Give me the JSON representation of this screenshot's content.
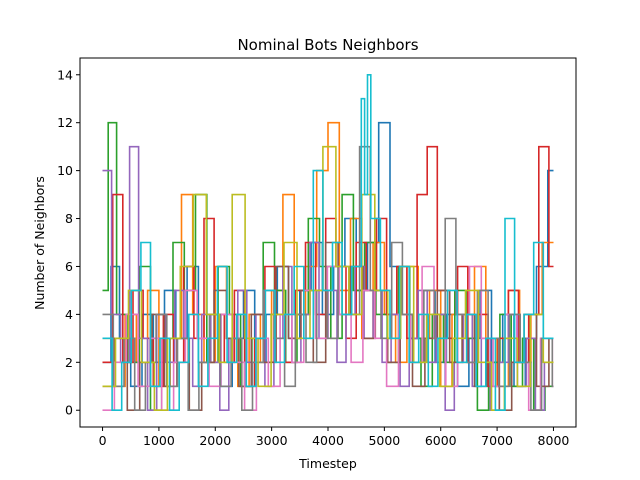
{
  "chart_data": {
    "type": "line",
    "title": "Nominal Bots Neighbors",
    "xlabel": "Timestep",
    "ylabel": "Number of Neighbors",
    "xlim": [
      -400,
      8400
    ],
    "ylim": [
      -0.7,
      14.7
    ],
    "xticks": [
      0,
      1000,
      2000,
      3000,
      4000,
      5000,
      6000,
      7000,
      8000
    ],
    "xtick_labels": [
      "0",
      "1000",
      "2000",
      "3000",
      "4000",
      "5000",
      "6000",
      "7000",
      "8000"
    ],
    "yticks": [
      0,
      2,
      4,
      6,
      8,
      10,
      12,
      14
    ],
    "ytick_labels": [
      "0",
      "2",
      "4",
      "6",
      "8",
      "10",
      "12",
      "14"
    ],
    "grid": false,
    "legend": "none",
    "step": true,
    "colors": [
      "#1f77b4",
      "#ff7f0e",
      "#2ca02c",
      "#d62728",
      "#9467bd",
      "#8c564b",
      "#e377c2",
      "#7f7f7f",
      "#bcbd22",
      "#17becf"
    ],
    "series": [
      {
        "color": "#1f77b4",
        "x": [
          0,
          150,
          300,
          500,
          700,
          900,
          1100,
          1300,
          1500,
          1700,
          1900,
          2100,
          2300,
          2500,
          2700,
          2900,
          3100,
          3300,
          3500,
          3700,
          3900,
          4100,
          4300,
          4500,
          4700,
          4900,
          5100,
          5300,
          5500,
          5700,
          5900,
          6100,
          6300,
          6500,
          6700,
          6900,
          7100,
          7300,
          7500,
          7700,
          7900,
          8000
        ],
        "y": [
          2,
          6,
          3,
          1,
          4,
          2,
          5,
          3,
          6,
          2,
          4,
          1,
          3,
          5,
          2,
          4,
          6,
          3,
          5,
          7,
          4,
          6,
          8,
          5,
          7,
          12,
          6,
          4,
          3,
          5,
          2,
          4,
          1,
          3,
          5,
          2,
          4,
          1,
          3,
          6,
          10,
          10
        ]
      },
      {
        "color": "#ff7f0e",
        "x": [
          0,
          200,
          400,
          600,
          800,
          1000,
          1200,
          1400,
          1600,
          1800,
          2000,
          2200,
          2400,
          2600,
          2800,
          3000,
          3200,
          3400,
          3600,
          3800,
          4000,
          4200,
          4400,
          4600,
          4800,
          5000,
          5200,
          5400,
          5600,
          5800,
          6000,
          6200,
          6400,
          6600,
          6800,
          7000,
          7200,
          7400,
          7600,
          7800,
          8000
        ],
        "y": [
          3,
          1,
          4,
          2,
          5,
          1,
          3,
          9,
          4,
          2,
          6,
          3,
          1,
          4,
          2,
          5,
          9,
          4,
          6,
          10,
          12,
          5,
          8,
          3,
          7,
          4,
          2,
          6,
          3,
          5,
          1,
          4,
          2,
          6,
          3,
          1,
          5,
          2,
          4,
          7,
          7
        ]
      },
      {
        "color": "#2ca02c",
        "x": [
          0,
          100,
          250,
          450,
          650,
          850,
          1050,
          1250,
          1450,
          1650,
          1850,
          2050,
          2250,
          2450,
          2650,
          2850,
          3050,
          3250,
          3450,
          3650,
          3850,
          4050,
          4250,
          4450,
          4650,
          4850,
          5050,
          5250,
          5450,
          5650,
          5850,
          6050,
          6250,
          6450,
          6650,
          6850,
          7050,
          7250,
          7450,
          7650,
          7850,
          8000
        ],
        "y": [
          5,
          12,
          4,
          2,
          6,
          0,
          3,
          7,
          5,
          9,
          2,
          6,
          4,
          1,
          3,
          7,
          5,
          2,
          4,
          8,
          6,
          3,
          9,
          5,
          7,
          4,
          2,
          6,
          3,
          1,
          4,
          2,
          5,
          3,
          0,
          2,
          4,
          1,
          3,
          0,
          1,
          1
        ]
      },
      {
        "color": "#d62728",
        "x": [
          0,
          180,
          360,
          540,
          720,
          900,
          1080,
          1260,
          1440,
          1620,
          1800,
          1980,
          2160,
          2340,
          2520,
          2700,
          2880,
          3060,
          3240,
          3420,
          3600,
          3780,
          3960,
          4140,
          4320,
          4500,
          4680,
          4860,
          5040,
          5220,
          5400,
          5580,
          5760,
          5940,
          6120,
          6300,
          6480,
          6660,
          6840,
          7020,
          7200,
          7380,
          7560,
          7740,
          7920,
          8000
        ],
        "y": [
          2,
          9,
          2,
          5,
          3,
          1,
          4,
          2,
          6,
          3,
          8,
          4,
          2,
          5,
          1,
          3,
          6,
          4,
          2,
          5,
          7,
          4,
          8,
          6,
          3,
          7,
          5,
          8,
          4,
          6,
          3,
          9,
          11,
          5,
          3,
          6,
          2,
          4,
          1,
          3,
          5,
          2,
          4,
          11,
          6,
          6
        ]
      },
      {
        "color": "#9467bd",
        "x": [
          0,
          160,
          320,
          480,
          640,
          800,
          960,
          1120,
          1280,
          1440,
          1600,
          1760,
          1920,
          2080,
          2240,
          2400,
          2560,
          2720,
          2880,
          3040,
          3200,
          3360,
          3520,
          3680,
          3840,
          4000,
          4160,
          4320,
          4480,
          4640,
          4800,
          4960,
          5120,
          5280,
          5440,
          5600,
          5760,
          5920,
          6080,
          6240,
          6400,
          6560,
          6720,
          6880,
          7040,
          7200,
          7360,
          7520,
          7680,
          7840,
          8000
        ],
        "y": [
          10,
          4,
          2,
          11,
          3,
          0,
          4,
          2,
          5,
          3,
          1,
          4,
          2,
          0,
          3,
          5,
          2,
          4,
          1,
          3,
          6,
          2,
          4,
          7,
          3,
          5,
          2,
          4,
          6,
          3,
          5,
          2,
          4,
          1,
          3,
          5,
          2,
          4,
          0,
          2,
          4,
          1,
          3,
          0,
          2,
          4,
          1,
          3,
          0,
          2,
          2
        ]
      },
      {
        "color": "#8c564b",
        "x": [
          0,
          220,
          440,
          660,
          880,
          1100,
          1320,
          1540,
          1760,
          1980,
          2200,
          2420,
          2640,
          2860,
          3080,
          3300,
          3520,
          3740,
          3960,
          4180,
          4400,
          4620,
          4840,
          5060,
          5280,
          5500,
          5720,
          5940,
          6160,
          6380,
          6600,
          6820,
          7040,
          7260,
          7480,
          7700,
          7920,
          8000
        ],
        "y": [
          1,
          3,
          0,
          2,
          4,
          1,
          3,
          0,
          2,
          5,
          3,
          1,
          4,
          2,
          6,
          3,
          5,
          2,
          7,
          4,
          6,
          3,
          5,
          2,
          4,
          1,
          3,
          5,
          2,
          4,
          1,
          3,
          0,
          2,
          4,
          1,
          3,
          3
        ]
      },
      {
        "color": "#e377c2",
        "x": [
          0,
          210,
          420,
          630,
          840,
          1050,
          1260,
          1470,
          1680,
          1890,
          2100,
          2310,
          2520,
          2730,
          2940,
          3150,
          3360,
          3570,
          3780,
          3990,
          4200,
          4410,
          4620,
          4830,
          5040,
          5250,
          5460,
          5670,
          5880,
          6090,
          6300,
          6510,
          6720,
          6930,
          7140,
          7350,
          7560,
          7770,
          7980,
          8000
        ],
        "y": [
          0,
          2,
          4,
          1,
          3,
          0,
          2,
          5,
          3,
          1,
          4,
          2,
          0,
          3,
          1,
          4,
          2,
          5,
          3,
          6,
          4,
          2,
          5,
          3,
          1,
          4,
          2,
          6,
          3,
          1,
          4,
          6,
          3,
          1,
          4,
          2,
          0,
          3,
          1,
          1
        ]
      },
      {
        "color": "#7f7f7f",
        "x": [
          0,
          190,
          380,
          570,
          760,
          950,
          1140,
          1330,
          1520,
          1710,
          1900,
          2090,
          2280,
          2470,
          2660,
          2850,
          3040,
          3230,
          3420,
          3610,
          3800,
          3990,
          4180,
          4370,
          4560,
          4750,
          4940,
          5130,
          5320,
          5510,
          5700,
          5890,
          6080,
          6270,
          6460,
          6650,
          6840,
          7030,
          7220,
          7410,
          7600,
          7790,
          7980,
          8000
        ],
        "y": [
          4,
          1,
          3,
          0,
          2,
          4,
          1,
          3,
          0,
          2,
          4,
          1,
          3,
          0,
          2,
          5,
          3,
          1,
          4,
          2,
          5,
          3,
          6,
          4,
          11,
          5,
          3,
          7,
          4,
          2,
          5,
          3,
          8,
          4,
          2,
          5,
          3,
          1,
          4,
          2,
          0,
          3,
          1,
          1
        ]
      },
      {
        "color": "#bcbd22",
        "x": [
          0,
          230,
          460,
          690,
          920,
          1150,
          1380,
          1610,
          1840,
          2070,
          2300,
          2530,
          2760,
          2990,
          3220,
          3450,
          3680,
          3910,
          4140,
          4370,
          4600,
          4830,
          5060,
          5290,
          5520,
          5750,
          5980,
          6210,
          6440,
          6670,
          6900,
          7130,
          7360,
          7590,
          7820,
          8000
        ],
        "y": [
          1,
          3,
          5,
          2,
          0,
          3,
          6,
          9,
          4,
          2,
          9,
          3,
          1,
          4,
          7,
          3,
          5,
          11,
          6,
          4,
          9,
          5,
          3,
          6,
          2,
          4,
          1,
          3,
          5,
          2,
          0,
          3,
          1,
          4,
          2,
          2
        ]
      },
      {
        "color": "#17becf",
        "x": [
          0,
          170,
          340,
          510,
          680,
          850,
          1020,
          1190,
          1360,
          1530,
          1700,
          1870,
          2040,
          2210,
          2380,
          2550,
          2720,
          2890,
          3060,
          3230,
          3400,
          3570,
          3740,
          3910,
          4080,
          4250,
          4420,
          4590,
          4650,
          4700,
          4760,
          4930,
          5100,
          5270,
          5440,
          5610,
          5780,
          5950,
          6120,
          6290,
          6460,
          6630,
          6800,
          6970,
          7140,
          7310,
          7480,
          7650,
          7820,
          8000
        ],
        "y": [
          3,
          0,
          2,
          5,
          7,
          1,
          3,
          0,
          2,
          4,
          1,
          3,
          6,
          2,
          4,
          1,
          3,
          5,
          2,
          4,
          6,
          3,
          10,
          5,
          7,
          4,
          6,
          13,
          9,
          14,
          8,
          5,
          3,
          6,
          2,
          4,
          1,
          3,
          5,
          2,
          4,
          1,
          3,
          0,
          8,
          2,
          4,
          7,
          3,
          3
        ]
      }
    ]
  }
}
